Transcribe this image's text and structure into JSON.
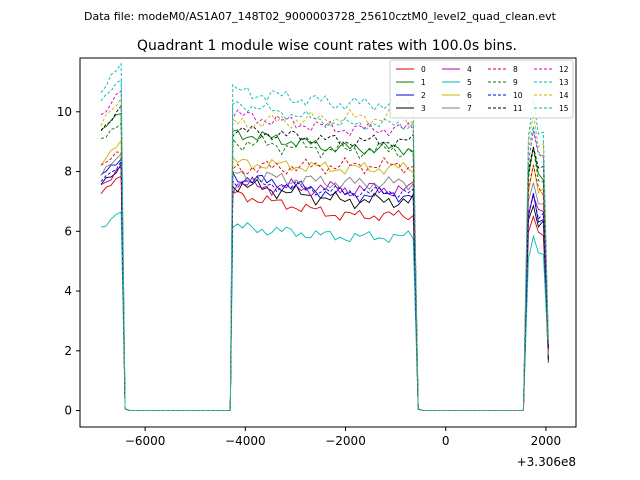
{
  "chart_data": {
    "type": "line",
    "suptitle": "Data file: modeM0/AS1A07_148T02_9000003728_25610cztM0_level2_quad_clean.evt",
    "title": "Quadrant 1 module wise count rates with 100.0s bins.",
    "xlabel": "",
    "ylabel": "",
    "x_offset_label": "+3.306e8",
    "xlim": [
      -7300,
      2600
    ],
    "ylim": [
      -0.55,
      11.8
    ],
    "xticks": [
      -6000,
      -4000,
      -2000,
      0,
      2000
    ],
    "xtick_labels": [
      "−6000",
      "−4000",
      "−2000",
      "0",
      "2000"
    ],
    "yticks": [
      0,
      2,
      4,
      6,
      8,
      10
    ],
    "ytick_labels": [
      "0",
      "2",
      "4",
      "6",
      "8",
      "10"
    ],
    "legend_loc": "upper right",
    "legend_ncol": 4,
    "segments": [
      {
        "x_start": -6900,
        "x_end": -6400,
        "bins": 5
      },
      {
        "x_start": -4300,
        "x_end": -600,
        "bins": 38
      },
      {
        "x_start": 1600,
        "x_end": 2100,
        "bins": 5
      }
    ],
    "series": [
      {
        "name": "0",
        "color": "#e00000",
        "dashed": false,
        "rates": [
          7.25,
          6.5
        ]
      },
      {
        "name": "1",
        "color": "#007800",
        "dashed": false,
        "rates": [
          9.3,
          8.75
        ]
      },
      {
        "name": "2",
        "color": "#0000e0",
        "dashed": false,
        "rates": [
          7.85,
          7.2
        ]
      },
      {
        "name": "3",
        "color": "#000000",
        "dashed": false,
        "rates": [
          7.6,
          7.0
        ]
      },
      {
        "name": "4",
        "color": "#b000b0",
        "dashed": false,
        "rates": [
          7.55,
          7.4
        ]
      },
      {
        "name": "5",
        "color": "#00b8b8",
        "dashed": false,
        "rates": [
          6.15,
          5.8
        ]
      },
      {
        "name": "6",
        "color": "#c8b400",
        "dashed": false,
        "rates": [
          8.3,
          8.1
        ]
      },
      {
        "name": "7",
        "color": "#808080",
        "dashed": false,
        "rates": [
          7.9,
          7.6
        ]
      },
      {
        "name": "8",
        "color": "#e00000",
        "dashed": true,
        "rates": [
          8.1,
          8.2
        ]
      },
      {
        "name": "9",
        "color": "#007800",
        "dashed": true,
        "rates": [
          9.0,
          8.7
        ]
      },
      {
        "name": "10",
        "color": "#0000e0",
        "dashed": true,
        "rates": [
          7.7,
          7.3
        ]
      },
      {
        "name": "11",
        "color": "#000000",
        "dashed": true,
        "rates": [
          9.4,
          9.0
        ]
      },
      {
        "name": "12",
        "color": "#d000d0",
        "dashed": true,
        "rates": [
          9.9,
          9.4
        ]
      },
      {
        "name": "13",
        "color": "#00b8b8",
        "dashed": true,
        "rates": [
          10.7,
          10.25
        ]
      },
      {
        "name": "14",
        "color": "#c8b400",
        "dashed": true,
        "rates": [
          9.6,
          9.8
        ]
      },
      {
        "name": "15",
        "color": "#00b8b8",
        "dashed": true,
        "rates": [
          10.3,
          9.55
        ]
      }
    ]
  }
}
